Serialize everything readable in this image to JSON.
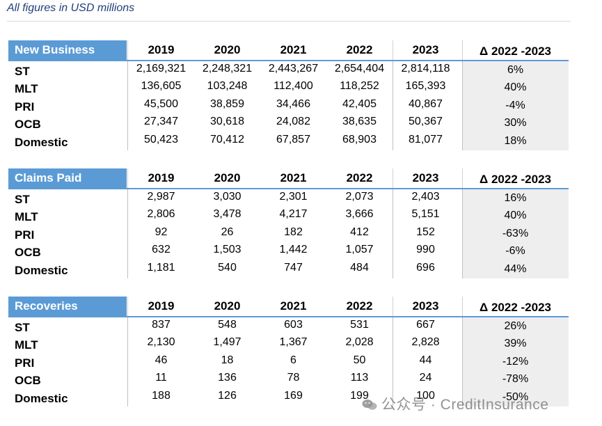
{
  "note": "All figures in USD millions",
  "years": [
    "2019",
    "2020",
    "2021",
    "2022",
    "2023"
  ],
  "delta_header": "Δ 2022 -2023",
  "tables": [
    {
      "title": "New Business",
      "rows": [
        {
          "label": "ST",
          "values": [
            "2,169,321",
            "2,248,321",
            "2,443,267",
            "2,654,404",
            "2,814,118"
          ],
          "delta": "6%"
        },
        {
          "label": "MLT",
          "values": [
            "136,605",
            "103,248",
            "112,400",
            "118,252",
            "165,393"
          ],
          "delta": "40%"
        },
        {
          "label": "PRI",
          "values": [
            "45,500",
            "38,859",
            "34,466",
            "42,405",
            "40,867"
          ],
          "delta": "-4%"
        },
        {
          "label": "OCB",
          "values": [
            "27,347",
            "30,618",
            "24,082",
            "38,635",
            "50,367"
          ],
          "delta": "30%"
        },
        {
          "label": "Domestic",
          "values": [
            "50,423",
            "70,412",
            "67,857",
            "68,903",
            "81,077"
          ],
          "delta": "18%"
        }
      ]
    },
    {
      "title": "Claims Paid",
      "rows": [
        {
          "label": "ST",
          "values": [
            "2,987",
            "3,030",
            "2,301",
            "2,073",
            "2,403"
          ],
          "delta": "16%"
        },
        {
          "label": "MLT",
          "values": [
            "2,806",
            "3,478",
            "4,217",
            "3,666",
            "5,151"
          ],
          "delta": "40%"
        },
        {
          "label": "PRI",
          "values": [
            "92",
            "26",
            "182",
            "412",
            "152"
          ],
          "delta": "-63%"
        },
        {
          "label": "OCB",
          "values": [
            "632",
            "1,503",
            "1,442",
            "1,057",
            "990"
          ],
          "delta": "-6%"
        },
        {
          "label": "Domestic",
          "values": [
            "1,181",
            "540",
            "747",
            "484",
            "696"
          ],
          "delta": "44%"
        }
      ]
    },
    {
      "title": "Recoveries",
      "rows": [
        {
          "label": "ST",
          "values": [
            "837",
            "548",
            "603",
            "531",
            "667"
          ],
          "delta": "26%"
        },
        {
          "label": "MLT",
          "values": [
            "2,130",
            "1,497",
            "1,367",
            "2,028",
            "2,828"
          ],
          "delta": "39%"
        },
        {
          "label": "PRI",
          "values": [
            "46",
            "18",
            "6",
            "50",
            "44"
          ],
          "delta": "-12%"
        },
        {
          "label": "OCB",
          "values": [
            "11",
            "136",
            "78",
            "113",
            "24"
          ],
          "delta": "-78%"
        },
        {
          "label": "Domestic",
          "values": [
            "188",
            "126",
            "169",
            "199",
            "100"
          ],
          "delta": "-50%"
        }
      ]
    }
  ],
  "watermark": {
    "icon": "wechat-icon",
    "text": "公众号 · CreditInsurance"
  },
  "colors": {
    "header_fill": "#5b9bd5",
    "delta_fill": "#eeeeee",
    "note_text": "#1f3f7a"
  }
}
